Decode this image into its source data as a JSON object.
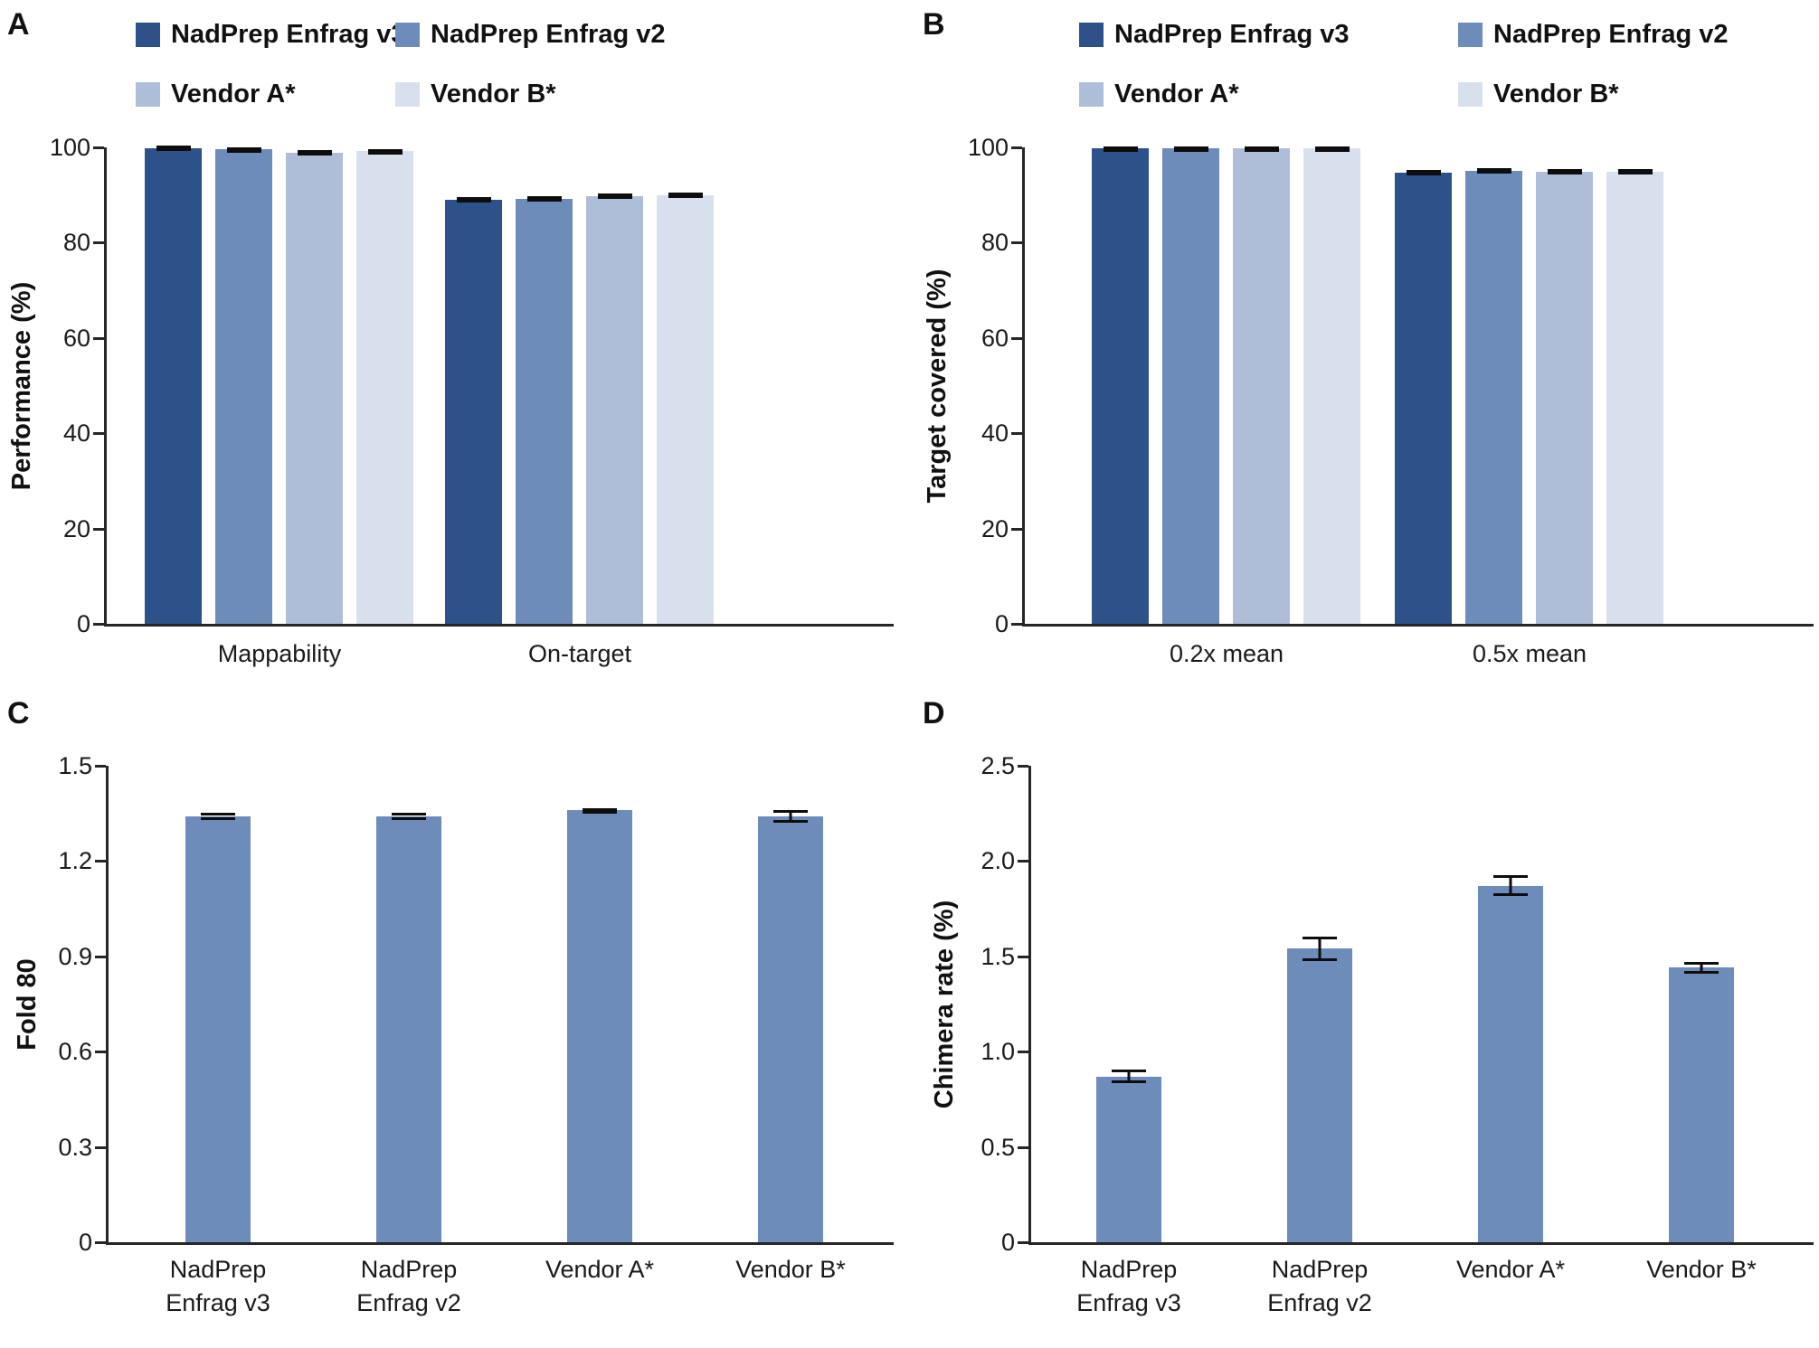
{
  "figure_title": "",
  "chart_data": [
    {
      "id": "A",
      "type": "bar",
      "panel_label": "A",
      "ylabel": "Performance (%)",
      "xlabel": "",
      "ylim": [
        0,
        100
      ],
      "grid": false,
      "show_legend": true,
      "legend_position": "top",
      "yticks": [
        {
          "value": 0,
          "label": "0"
        },
        {
          "value": 20,
          "label": "20"
        },
        {
          "value": 40,
          "label": "40"
        },
        {
          "value": 60,
          "label": "60"
        },
        {
          "value": 80,
          "label": "80"
        },
        {
          "value": 100,
          "label": "100"
        }
      ],
      "categories": [
        [
          "Mappability"
        ],
        [
          "On-target"
        ]
      ],
      "series": [
        {
          "name": "NadPrep Enfrag v3",
          "color": "#2d5189",
          "values": [
            99.9,
            89.0
          ],
          "errors": [
            0.1,
            0.15
          ]
        },
        {
          "name": "NadPrep Enfrag v2",
          "color": "#6d8cba",
          "values": [
            99.6,
            89.2
          ],
          "errors": [
            0.1,
            0.3
          ]
        },
        {
          "name": "Vendor A*",
          "color": "#aebed9",
          "values": [
            98.9,
            89.8
          ],
          "errors": [
            0.15,
            0.4
          ]
        },
        {
          "name": "Vendor B*",
          "color": "#d8e0ee",
          "values": [
            99.2,
            90.0
          ],
          "errors": [
            0.1,
            0.4
          ]
        }
      ]
    },
    {
      "id": "B",
      "type": "bar",
      "panel_label": "B",
      "ylabel": "Target covered (%)",
      "xlabel": "",
      "ylim": [
        0,
        100
      ],
      "grid": false,
      "show_legend": true,
      "legend_position": "top",
      "yticks": [
        {
          "value": 0,
          "label": "0"
        },
        {
          "value": 20,
          "label": "20"
        },
        {
          "value": 40,
          "label": "40"
        },
        {
          "value": 60,
          "label": "60"
        },
        {
          "value": 80,
          "label": "80"
        },
        {
          "value": 100,
          "label": "100"
        }
      ],
      "categories": [
        [
          "0.2x mean"
        ],
        [
          "0.5x mean"
        ]
      ],
      "series": [
        {
          "name": "NadPrep Enfrag v3",
          "color": "#2d5189",
          "values": [
            99.8,
            94.7
          ],
          "errors": [
            0.05,
            0.15
          ]
        },
        {
          "name": "NadPrep Enfrag v2",
          "color": "#6d8cba",
          "values": [
            99.8,
            95.1
          ],
          "errors": [
            0.05,
            0.3
          ]
        },
        {
          "name": "Vendor A*",
          "color": "#aebed9",
          "values": [
            99.8,
            94.9
          ],
          "errors": [
            0.05,
            0.5
          ]
        },
        {
          "name": "Vendor B*",
          "color": "#d8e0ee",
          "values": [
            99.8,
            94.9
          ],
          "errors": [
            0.05,
            0.3
          ]
        }
      ]
    },
    {
      "id": "C",
      "type": "bar",
      "panel_label": "C",
      "ylabel": "Fold 80",
      "xlabel": "",
      "ylim": [
        0,
        1.5
      ],
      "grid": false,
      "show_legend": false,
      "yticks": [
        {
          "value": 0,
          "label": "0"
        },
        {
          "value": 0.3,
          "label": "0.3"
        },
        {
          "value": 0.6,
          "label": "0.6"
        },
        {
          "value": 0.9,
          "label": "0.9"
        },
        {
          "value": 1.2,
          "label": "1.2"
        },
        {
          "value": 1.5,
          "label": "1.5"
        }
      ],
      "categories": [
        [
          "NadPrep",
          "Enfrag v3"
        ],
        [
          "NadPrep",
          "Enfrag v2"
        ],
        [
          "Vendor A*"
        ],
        [
          "Vendor B*"
        ]
      ],
      "series": [
        {
          "name": "Fold 80",
          "color": "#6d8cba",
          "values": [
            1.34,
            1.34,
            1.36,
            1.34
          ],
          "errors": [
            0.012,
            0.012,
            0.005,
            0.02
          ]
        }
      ]
    },
    {
      "id": "D",
      "type": "bar",
      "panel_label": "D",
      "ylabel": "Chimera rate (%)",
      "xlabel": "",
      "ylim": [
        0,
        2.5
      ],
      "grid": false,
      "show_legend": false,
      "yticks": [
        {
          "value": 0,
          "label": "0"
        },
        {
          "value": 0.5,
          "label": "0.5"
        },
        {
          "value": 1.0,
          "label": "1.0"
        },
        {
          "value": 1.5,
          "label": "1.5"
        },
        {
          "value": 2.0,
          "label": "2.0"
        },
        {
          "value": 2.5,
          "label": "2.5"
        }
      ],
      "categories": [
        [
          "NadPrep",
          "Enfrag v3"
        ],
        [
          "NadPrep",
          "Enfrag v2"
        ],
        [
          "Vendor A*"
        ],
        [
          "Vendor B*"
        ]
      ],
      "series": [
        {
          "name": "Chimera rate",
          "color": "#6d8cba",
          "values": [
            0.87,
            1.54,
            1.87,
            1.44
          ],
          "errors": [
            0.035,
            0.065,
            0.055,
            0.03
          ]
        }
      ]
    }
  ],
  "colors": {
    "series_palette": [
      "#2d5189",
      "#6d8cba",
      "#aebed9",
      "#d8e0ee"
    ],
    "axis": "#262626",
    "error_bar": "#0d0d0d",
    "text": "#1a1a1a",
    "background": "#ffffff"
  }
}
